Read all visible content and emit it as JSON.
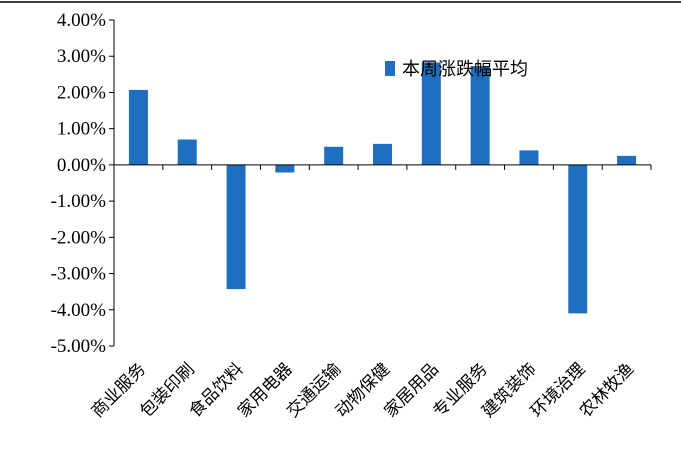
{
  "chart_data": {
    "type": "bar",
    "categories": [
      "商业服务",
      "包装印刷",
      "食品饮料",
      "家用电器",
      "交通运输",
      "动物保健",
      "家居用品",
      "专业服务",
      "建筑装饰",
      "环境治理",
      "农林牧渔"
    ],
    "series": [
      {
        "name": "本周涨跌幅平均",
        "values": [
          2.07,
          0.7,
          -3.43,
          -0.21,
          0.5,
          0.58,
          2.83,
          2.73,
          0.4,
          -4.1,
          0.25
        ],
        "color": "#1f6fc1"
      }
    ],
    "yticks": [
      "4.00%",
      "3.00%",
      "2.00%",
      "1.00%",
      "0.00%",
      "-1.00%",
      "-2.00%",
      "-3.00%",
      "-4.00%",
      "-5.00%"
    ],
    "ylim": [
      -5,
      4
    ],
    "title": "",
    "xlabel": "",
    "ylabel": "",
    "legend_position": "top-right",
    "grid": false
  }
}
